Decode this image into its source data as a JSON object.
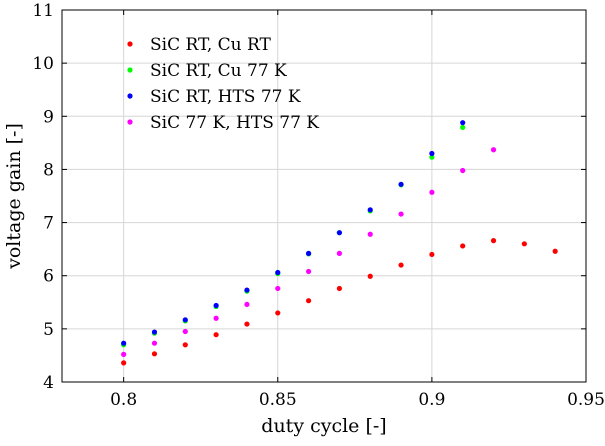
{
  "chart_data": {
    "type": "scatter",
    "title": "",
    "xlabel": "duty cycle [-]",
    "ylabel": "voltage gain [-]",
    "xlim": [
      0.78,
      0.95
    ],
    "ylim": [
      4,
      11
    ],
    "xticks": [
      0.8,
      0.85,
      0.9,
      0.95
    ],
    "xtick_labels": [
      "0.8",
      "0.85",
      "0.9",
      "0.95"
    ],
    "yticks": [
      4,
      5,
      6,
      7,
      8,
      9,
      10,
      11
    ],
    "ytick_labels": [
      "4",
      "5",
      "6",
      "7",
      "8",
      "9",
      "10",
      "11"
    ],
    "grid": true,
    "legend_position": "top-left",
    "series": [
      {
        "name": "SiC RT, Cu RT",
        "color": "#ff0000",
        "x": [
          0.8,
          0.81,
          0.82,
          0.83,
          0.84,
          0.85,
          0.86,
          0.87,
          0.88,
          0.89,
          0.9,
          0.91,
          0.92,
          0.93,
          0.94
        ],
        "y": [
          4.36,
          4.53,
          4.7,
          4.89,
          5.09,
          5.3,
          5.53,
          5.76,
          5.99,
          6.2,
          6.4,
          6.56,
          6.66,
          6.6,
          6.46
        ]
      },
      {
        "name": "SiC RT, Cu 77 K",
        "color": "#00ff00",
        "x": [
          0.8,
          0.81,
          0.82,
          0.83,
          0.84,
          0.85,
          0.86,
          0.87,
          0.88,
          0.89,
          0.9,
          0.91
        ],
        "y": [
          4.7,
          4.92,
          5.15,
          5.42,
          5.71,
          6.04,
          6.41,
          6.81,
          7.22,
          7.71,
          8.23,
          8.79
        ]
      },
      {
        "name": "SiC RT, HTS 77 K",
        "color": "#0000ff",
        "x": [
          0.8,
          0.81,
          0.82,
          0.83,
          0.84,
          0.85,
          0.86,
          0.87,
          0.88,
          0.89,
          0.9,
          0.91
        ],
        "y": [
          4.73,
          4.94,
          5.17,
          5.44,
          5.73,
          6.06,
          6.42,
          6.81,
          7.24,
          7.72,
          8.3,
          8.88
        ]
      },
      {
        "name": "SiC 77 K, HTS 77 K",
        "color": "#ff00ff",
        "x": [
          0.8,
          0.81,
          0.82,
          0.83,
          0.84,
          0.85,
          0.86,
          0.87,
          0.88,
          0.89,
          0.9,
          0.91,
          0.92
        ],
        "y": [
          4.52,
          4.73,
          4.95,
          5.2,
          5.46,
          5.76,
          6.08,
          6.42,
          6.78,
          7.16,
          7.57,
          7.98,
          8.37
        ]
      }
    ]
  }
}
